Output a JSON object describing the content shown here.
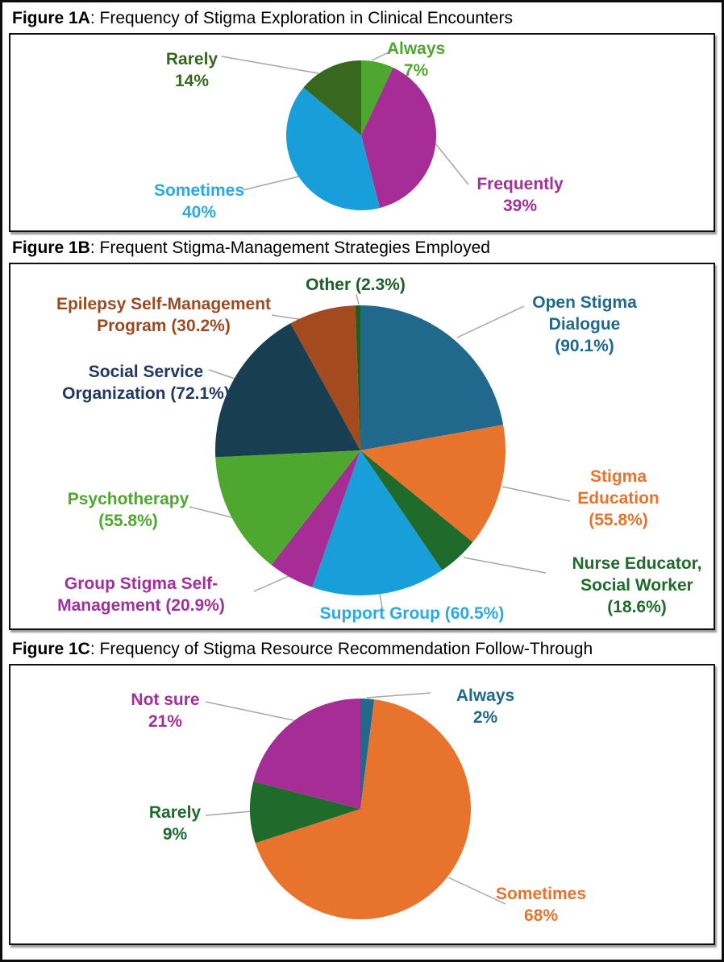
{
  "unit": "%",
  "chart_data": [
    {
      "type": "pie",
      "title_bold": "Figure 1A",
      "title_rest": ": Frequency of Stigma Exploration in Clinical Encounters",
      "title": "Figure 1A: Frequency of Stigma Exploration in Clinical Encounters",
      "labels": [
        "Always",
        "Frequently",
        "Sometimes",
        "Rarely"
      ],
      "values": [
        7,
        39,
        40,
        14
      ],
      "value_format": "percent",
      "colors": [
        "#4EA72E",
        "#A62C96",
        "#189FD9",
        "#386720"
      ],
      "label_colors": [
        "#4EA72E",
        "#A2309B",
        "#2BA9E2",
        "#386720"
      ],
      "start_angle": "top",
      "direction": "clockwise",
      "legend": "callout-labels"
    },
    {
      "type": "pie",
      "title_bold": "Figure 1B",
      "title_rest": ": Frequent Stigma-Management Strategies Employed",
      "title": "Figure 1B: Frequent Stigma-Management Strategies Employed",
      "labels": [
        "Open Stigma Dialogue",
        "Stigma Education",
        "Nurse Educator, Social Worker",
        "Support Group",
        "Group Stigma Self-Management",
        "Psychotherapy",
        "Social Service Organization",
        "Epilepsy Self-Management Program",
        "Other"
      ],
      "values": [
        90.1,
        55.8,
        18.6,
        60.5,
        20.9,
        55.8,
        72.1,
        30.2,
        2.3
      ],
      "value_format": "percent",
      "note": "multi-select percentages; slice angles proportional to values",
      "colors": [
        "#20688C",
        "#E8732C",
        "#1E6B2B",
        "#189FD9",
        "#A62C96",
        "#4EA72E",
        "#173F51",
        "#A34A1F",
        "#1A5E28"
      ],
      "label_colors": [
        "#20688C",
        "#E8732C",
        "#1E6B2B",
        "#2BA9E2",
        "#A2309B",
        "#4EA72E",
        "#1F3864",
        "#9C4A21",
        "#1A5E28"
      ],
      "start_angle": "top",
      "direction": "clockwise",
      "legend": "callout-labels"
    },
    {
      "type": "pie",
      "title_bold": "Figure 1C",
      "title_rest": ": Frequency of Stigma Resource Recommendation Follow-Through",
      "title": "Figure 1C: Frequency of Stigma Resource Recommendation Follow-Through",
      "labels": [
        "Always",
        "Sometimes",
        "Rarely",
        "Not sure"
      ],
      "values": [
        2,
        68,
        9,
        21
      ],
      "value_format": "percent",
      "colors": [
        "#20688C",
        "#E8732C",
        "#1E6B2B",
        "#A62C96"
      ],
      "label_colors": [
        "#20688C",
        "#E8732C",
        "#1E6B2B",
        "#A2309B"
      ],
      "start_angle": "top",
      "direction": "clockwise",
      "legend": "callout-labels"
    }
  ]
}
